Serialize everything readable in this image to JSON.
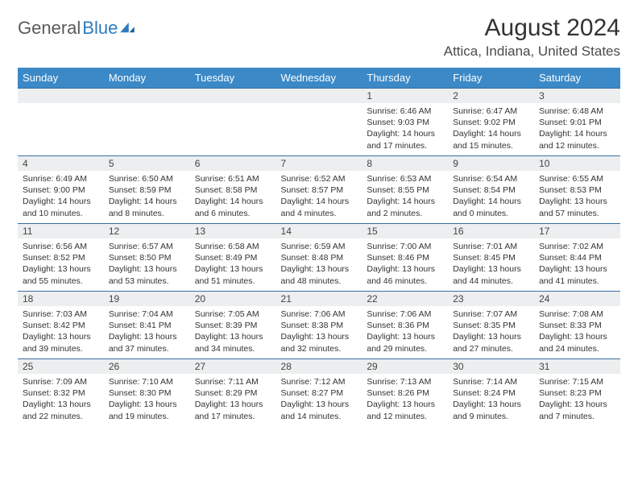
{
  "logo": {
    "text_general": "General",
    "text_blue": "Blue"
  },
  "title": {
    "month": "August 2024",
    "location": "Attica, Indiana, United States"
  },
  "colors": {
    "header_bg": "#3b89c7",
    "header_text": "#ffffff",
    "daynum_bg": "#eceeef",
    "row_border": "#3b6ea5",
    "logo_blue": "#2e7cc0",
    "logo_gray": "#5a5a5a",
    "body_text": "#333333"
  },
  "weekdays": [
    "Sunday",
    "Monday",
    "Tuesday",
    "Wednesday",
    "Thursday",
    "Friday",
    "Saturday"
  ],
  "weeks": [
    [
      {
        "n": "",
        "sr": "",
        "ss": "",
        "dl": ""
      },
      {
        "n": "",
        "sr": "",
        "ss": "",
        "dl": ""
      },
      {
        "n": "",
        "sr": "",
        "ss": "",
        "dl": ""
      },
      {
        "n": "",
        "sr": "",
        "ss": "",
        "dl": ""
      },
      {
        "n": "1",
        "sr": "Sunrise: 6:46 AM",
        "ss": "Sunset: 9:03 PM",
        "dl": "Daylight: 14 hours and 17 minutes."
      },
      {
        "n": "2",
        "sr": "Sunrise: 6:47 AM",
        "ss": "Sunset: 9:02 PM",
        "dl": "Daylight: 14 hours and 15 minutes."
      },
      {
        "n": "3",
        "sr": "Sunrise: 6:48 AM",
        "ss": "Sunset: 9:01 PM",
        "dl": "Daylight: 14 hours and 12 minutes."
      }
    ],
    [
      {
        "n": "4",
        "sr": "Sunrise: 6:49 AM",
        "ss": "Sunset: 9:00 PM",
        "dl": "Daylight: 14 hours and 10 minutes."
      },
      {
        "n": "5",
        "sr": "Sunrise: 6:50 AM",
        "ss": "Sunset: 8:59 PM",
        "dl": "Daylight: 14 hours and 8 minutes."
      },
      {
        "n": "6",
        "sr": "Sunrise: 6:51 AM",
        "ss": "Sunset: 8:58 PM",
        "dl": "Daylight: 14 hours and 6 minutes."
      },
      {
        "n": "7",
        "sr": "Sunrise: 6:52 AM",
        "ss": "Sunset: 8:57 PM",
        "dl": "Daylight: 14 hours and 4 minutes."
      },
      {
        "n": "8",
        "sr": "Sunrise: 6:53 AM",
        "ss": "Sunset: 8:55 PM",
        "dl": "Daylight: 14 hours and 2 minutes."
      },
      {
        "n": "9",
        "sr": "Sunrise: 6:54 AM",
        "ss": "Sunset: 8:54 PM",
        "dl": "Daylight: 14 hours and 0 minutes."
      },
      {
        "n": "10",
        "sr": "Sunrise: 6:55 AM",
        "ss": "Sunset: 8:53 PM",
        "dl": "Daylight: 13 hours and 57 minutes."
      }
    ],
    [
      {
        "n": "11",
        "sr": "Sunrise: 6:56 AM",
        "ss": "Sunset: 8:52 PM",
        "dl": "Daylight: 13 hours and 55 minutes."
      },
      {
        "n": "12",
        "sr": "Sunrise: 6:57 AM",
        "ss": "Sunset: 8:50 PM",
        "dl": "Daylight: 13 hours and 53 minutes."
      },
      {
        "n": "13",
        "sr": "Sunrise: 6:58 AM",
        "ss": "Sunset: 8:49 PM",
        "dl": "Daylight: 13 hours and 51 minutes."
      },
      {
        "n": "14",
        "sr": "Sunrise: 6:59 AM",
        "ss": "Sunset: 8:48 PM",
        "dl": "Daylight: 13 hours and 48 minutes."
      },
      {
        "n": "15",
        "sr": "Sunrise: 7:00 AM",
        "ss": "Sunset: 8:46 PM",
        "dl": "Daylight: 13 hours and 46 minutes."
      },
      {
        "n": "16",
        "sr": "Sunrise: 7:01 AM",
        "ss": "Sunset: 8:45 PM",
        "dl": "Daylight: 13 hours and 44 minutes."
      },
      {
        "n": "17",
        "sr": "Sunrise: 7:02 AM",
        "ss": "Sunset: 8:44 PM",
        "dl": "Daylight: 13 hours and 41 minutes."
      }
    ],
    [
      {
        "n": "18",
        "sr": "Sunrise: 7:03 AM",
        "ss": "Sunset: 8:42 PM",
        "dl": "Daylight: 13 hours and 39 minutes."
      },
      {
        "n": "19",
        "sr": "Sunrise: 7:04 AM",
        "ss": "Sunset: 8:41 PM",
        "dl": "Daylight: 13 hours and 37 minutes."
      },
      {
        "n": "20",
        "sr": "Sunrise: 7:05 AM",
        "ss": "Sunset: 8:39 PM",
        "dl": "Daylight: 13 hours and 34 minutes."
      },
      {
        "n": "21",
        "sr": "Sunrise: 7:06 AM",
        "ss": "Sunset: 8:38 PM",
        "dl": "Daylight: 13 hours and 32 minutes."
      },
      {
        "n": "22",
        "sr": "Sunrise: 7:06 AM",
        "ss": "Sunset: 8:36 PM",
        "dl": "Daylight: 13 hours and 29 minutes."
      },
      {
        "n": "23",
        "sr": "Sunrise: 7:07 AM",
        "ss": "Sunset: 8:35 PM",
        "dl": "Daylight: 13 hours and 27 minutes."
      },
      {
        "n": "24",
        "sr": "Sunrise: 7:08 AM",
        "ss": "Sunset: 8:33 PM",
        "dl": "Daylight: 13 hours and 24 minutes."
      }
    ],
    [
      {
        "n": "25",
        "sr": "Sunrise: 7:09 AM",
        "ss": "Sunset: 8:32 PM",
        "dl": "Daylight: 13 hours and 22 minutes."
      },
      {
        "n": "26",
        "sr": "Sunrise: 7:10 AM",
        "ss": "Sunset: 8:30 PM",
        "dl": "Daylight: 13 hours and 19 minutes."
      },
      {
        "n": "27",
        "sr": "Sunrise: 7:11 AM",
        "ss": "Sunset: 8:29 PM",
        "dl": "Daylight: 13 hours and 17 minutes."
      },
      {
        "n": "28",
        "sr": "Sunrise: 7:12 AM",
        "ss": "Sunset: 8:27 PM",
        "dl": "Daylight: 13 hours and 14 minutes."
      },
      {
        "n": "29",
        "sr": "Sunrise: 7:13 AM",
        "ss": "Sunset: 8:26 PM",
        "dl": "Daylight: 13 hours and 12 minutes."
      },
      {
        "n": "30",
        "sr": "Sunrise: 7:14 AM",
        "ss": "Sunset: 8:24 PM",
        "dl": "Daylight: 13 hours and 9 minutes."
      },
      {
        "n": "31",
        "sr": "Sunrise: 7:15 AM",
        "ss": "Sunset: 8:23 PM",
        "dl": "Daylight: 13 hours and 7 minutes."
      }
    ]
  ]
}
